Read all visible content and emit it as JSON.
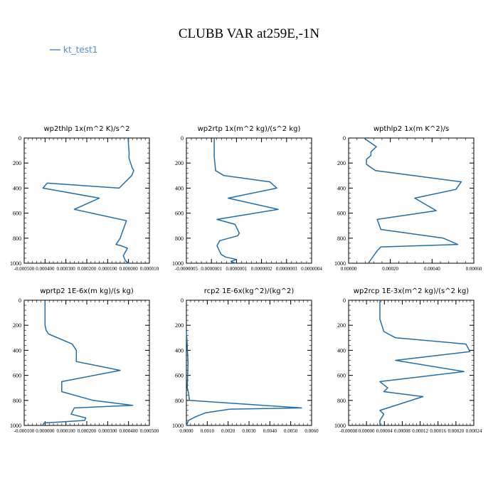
{
  "title": "CLUBB VAR at259E,-1N",
  "legend": {
    "label": "kt_test1",
    "color": "#4f8fc8"
  },
  "line_color": "#1f6fae",
  "chart_data": [
    {
      "type": "line",
      "title": "wp2thlp  1x(m^2 K)/s^2",
      "ylim": [
        1000,
        0
      ],
      "xlim": [
        -0.0005,
        0.0001
      ],
      "yticks": [
        "0",
        "200",
        "400",
        "600",
        "800",
        "1000"
      ],
      "xticks": [
        "-0.000500",
        "0.000400",
        "0.000300",
        "0.000200",
        "0.000100",
        "0.000000",
        "0.000010"
      ],
      "series": [
        {
          "x": [
            -2e-06,
            1e-06,
            3e-06,
            2e-06,
            1e-05,
            1.8e-05,
            2.5e-05,
            1.5e-05,
            -4.5e-05,
            -0.00039,
            -0.00041,
            -0.00014,
            -0.00026,
            -1e-05,
            -4e-05,
            -6e-05,
            -3.5e-05,
            -5e-06,
            -2.5e-05,
            -1.5e-05,
            0.0
          ],
          "y": [
            5,
            90,
            110,
            160,
            200,
            240,
            260,
            300,
            400,
            360,
            400,
            480,
            570,
            660,
            800,
            850,
            860,
            880,
            940,
            980,
            1000
          ]
        }
      ]
    },
    {
      "type": "line",
      "title": "wp2rtp  1x(m^2 kg)/(s^2 kg)",
      "ylim": [
        1000,
        0
      ],
      "xlim": [
        -5e-07,
        4e-07
      ],
      "yticks": [
        "0",
        "200",
        "400",
        "600",
        "800",
        "1000"
      ],
      "xticks": [
        "-0.0000005",
        "0.0000001",
        "0.0000001",
        "0.0000002",
        "0.0000003",
        "0.0000004"
      ],
      "series": [
        {
          "x": [
            -3e-07,
            -3e-07,
            -2.9e-07,
            -2.3e-07,
            1e-07,
            1.5e-07,
            -2e-07,
            1.6e-07,
            -2.8e-07,
            -1.5e-07,
            -1.2e-07,
            -1.3e-07,
            -2.6e-07,
            -2.8e-07,
            -2.5e-07,
            -2.2e-07,
            -1.4e-07,
            -1.8e-07,
            -1.6e-07,
            -1.4e-07
          ],
          "y": [
            5,
            150,
            260,
            300,
            350,
            400,
            480,
            570,
            650,
            690,
            760,
            780,
            820,
            860,
            930,
            950,
            970,
            985,
            995,
            1000
          ]
        }
      ]
    },
    {
      "type": "line",
      "title": "wpthlp2  1x(m K^2)/s",
      "ylim": [
        1000,
        0
      ],
      "xlim": [
        -0.0001,
        0.0006
      ],
      "yticks": [
        "0",
        "200",
        "400",
        "600",
        "800",
        "1000"
      ],
      "xticks": [
        "0.00000",
        "0.00020",
        "0.00040",
        "0.00060"
      ],
      "series": [
        {
          "x": [
            -1e-05,
            5.5e-05,
            2.5e-05,
            2.5e-05,
            0.0,
            0.0,
            5e-05,
            0.00053,
            0.0005,
            0.00027,
            0.00039,
            6e-05,
            8e-05,
            0.00043,
            0.00051,
            8e-05,
            6e-05,
            2e-05,
            1e-05
          ],
          "y": [
            5,
            70,
            110,
            140,
            170,
            210,
            260,
            350,
            410,
            480,
            580,
            650,
            730,
            800,
            850,
            870,
            900,
            980,
            1000
          ]
        }
      ]
    },
    {
      "type": "line",
      "title": "wprtp2  1E-6x(m kg)/(s kg)",
      "ylim": [
        1000,
        0
      ],
      "xlim": [
        -0.0001,
        0.0005
      ],
      "yticks": [
        "0",
        "200",
        "400",
        "600",
        "800",
        "1000"
      ],
      "xticks": [
        "-0.000100",
        "0.000000",
        "0.000100",
        "0.000200",
        "0.000300",
        "0.000400",
        "0.000500"
      ],
      "series": [
        {
          "x": [
            0.0,
            0.0,
            5e-06,
            1.7e-05,
            0.00013,
            0.00015,
            0.00015,
            0.00036,
            8e-05,
            8e-05,
            0.00023,
            0.00042,
            0.00014,
            0.000125,
            0.000195,
            0.00019,
            -5e-06,
            -1.2e-05
          ],
          "y": [
            5,
            200,
            240,
            270,
            350,
            400,
            490,
            560,
            650,
            730,
            800,
            840,
            860,
            910,
            940,
            960,
            980,
            1000
          ]
        }
      ]
    },
    {
      "type": "line",
      "title": "rcp2  1E-6x(kg^2)/(kg^2)",
      "ylim": [
        1000,
        0
      ],
      "xlim": [
        0.0,
        0.006
      ],
      "yticks": [
        "0",
        "200",
        "400",
        "600",
        "800",
        "1000"
      ],
      "xticks": [
        "0.0000",
        "0.0010",
        "0.0020",
        "0.0030",
        "0.0040",
        "0.0050",
        "0.0060"
      ],
      "series": [
        {
          "x": [
            0.0,
            2e-05,
            5e-05,
            8e-05,
            6e-05,
            4e-05,
            0.0001,
            0.00015,
            0.00552,
            0.00208,
            0.0009,
            0.00045,
            0.0001,
            3e-05,
            0.0
          ],
          "y": [
            250,
            300,
            400,
            500,
            600,
            700,
            740,
            800,
            860,
            870,
            900,
            930,
            960,
            990,
            1000
          ]
        }
      ]
    },
    {
      "type": "line",
      "title": "wp2rcp  1E-3x(m^2 kg)/(s^2 kg)",
      "ylim": [
        1000,
        0
      ],
      "xlim": [
        -8e-05,
        0.00024
      ],
      "yticks": [
        "0",
        "200",
        "400",
        "600",
        "800",
        "1000"
      ],
      "xticks": [
        "-0.00008",
        "0.00000",
        "0.00004",
        "0.00008",
        "0.00012",
        "0.00016",
        "0.00020",
        "0.00024"
      ],
      "series": [
        {
          "x": [
            0.0,
            0.0,
            1e-05,
            4e-05,
            0.00022,
            0.00023,
            4e-05,
            0.000215,
            0.0,
            2e-05,
            1e-05,
            0.00011,
            0.0,
            1e-05,
            0.0,
            0.0
          ],
          "y": [
            5,
            150,
            250,
            300,
            350,
            410,
            480,
            570,
            650,
            700,
            730,
            770,
            880,
            910,
            960,
            1000
          ]
        }
      ]
    }
  ]
}
